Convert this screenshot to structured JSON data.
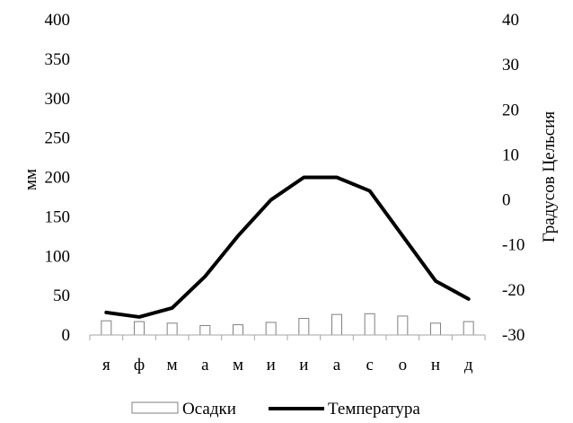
{
  "chart_data": {
    "type": "bar+line",
    "categories": [
      "я",
      "ф",
      "м",
      "а",
      "м",
      "и",
      "и",
      "а",
      "с",
      "о",
      "н",
      "д"
    ],
    "series": [
      {
        "name": "Осадки",
        "type": "bar",
        "axis": "left",
        "values": [
          18,
          17,
          15,
          12,
          13,
          16,
          21,
          26,
          27,
          24,
          15,
          17
        ]
      },
      {
        "name": "Температура",
        "type": "line",
        "axis": "right",
        "values": [
          -25,
          -26,
          -24,
          -17,
          -8,
          0,
          5,
          5,
          2,
          -8,
          -18,
          -22
        ]
      }
    ],
    "y_left": {
      "label": "мм",
      "ticks": [
        0,
        50,
        100,
        150,
        200,
        250,
        300,
        350,
        400
      ],
      "lim": [
        0,
        400
      ]
    },
    "y_right": {
      "label": "Градусов Цельсия",
      "ticks": [
        -30,
        -20,
        -10,
        0,
        10,
        20,
        30,
        40
      ],
      "lim": [
        -30,
        40
      ]
    },
    "grid": false,
    "legend": "bottom",
    "colors": {
      "bar_stroke": "#808080",
      "bar_fill": "#ffffff",
      "line": "#000000",
      "axis": "#a6a6a6"
    }
  }
}
